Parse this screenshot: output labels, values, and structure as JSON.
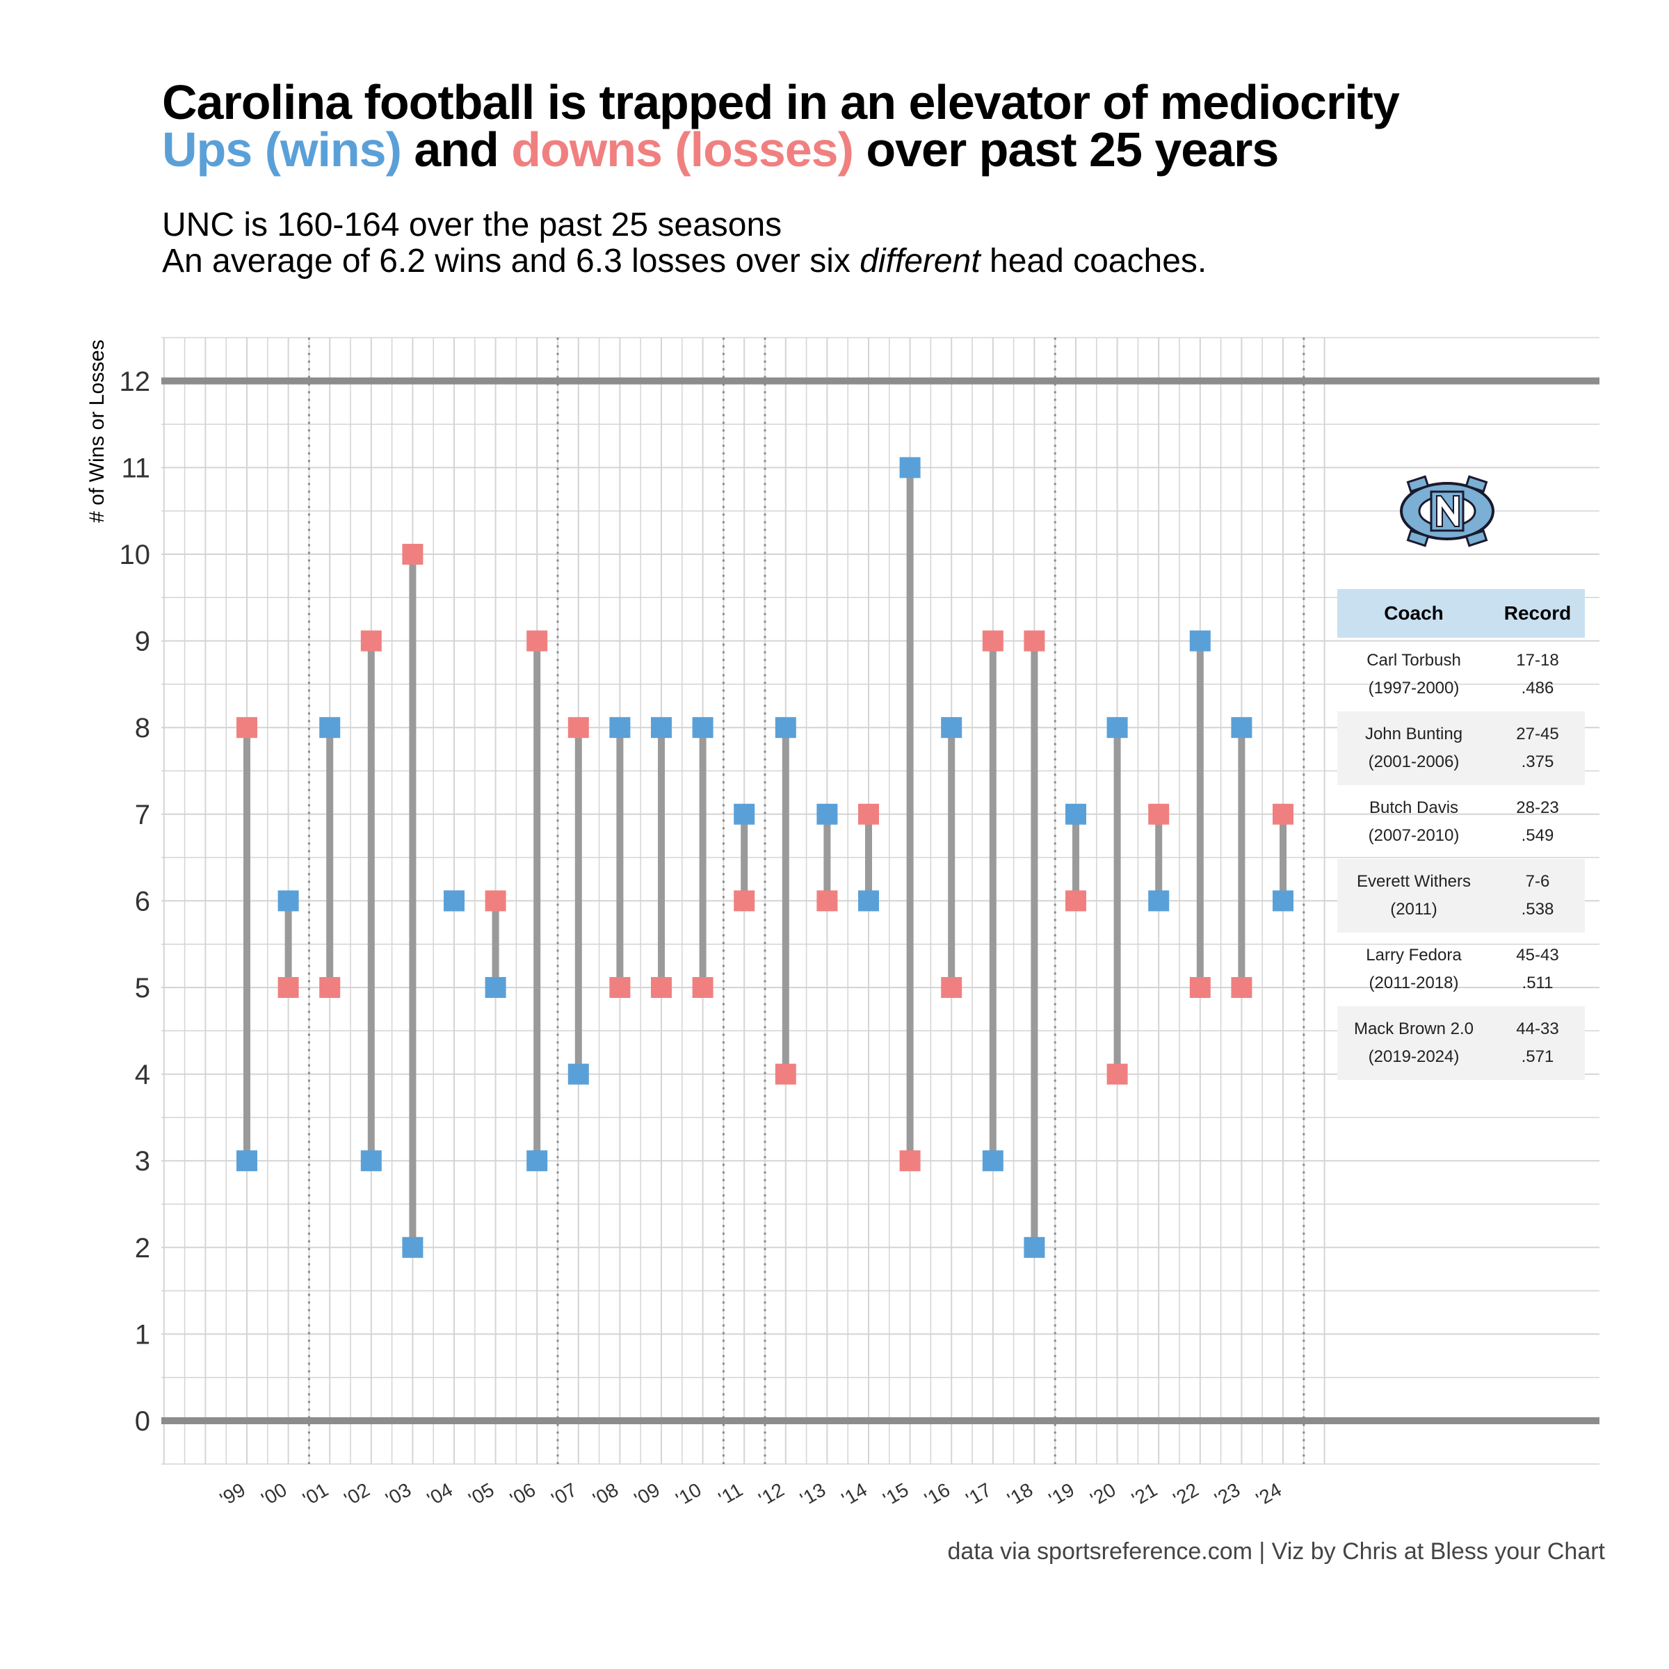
{
  "title": {
    "line1": "Carolina football is trapped in an elevator of mediocrity",
    "line2_wins": "Ups (wins)",
    "line2_and": " and ",
    "line2_losses": "downs (losses)",
    "line2_rest": " over past 25 years"
  },
  "subtitle": {
    "line1": "UNC is 160-164 over the past 25 seasons",
    "line2_a": "An average of 6.2 wins and 6.3 losses over six ",
    "line2_em": "different",
    "line2_b": " head coaches."
  },
  "caption": "data via sportsreference.com | Viz by Chris at Bless your Chart",
  "colors": {
    "wins": "#5aa0d8",
    "losses": "#f08080",
    "connector": "#9a9a9a",
    "reference_line": "#8c8c8c",
    "grid": "#d4d4d4"
  },
  "table": {
    "headers": [
      "Coach",
      "Record"
    ],
    "rows": [
      {
        "coach": "Carl Torbush",
        "years": "(1997-2000)",
        "record": "17-18",
        "pct": ".486"
      },
      {
        "coach": "John Bunting",
        "years": "(2001-2006)",
        "record": "27-45",
        "pct": ".375"
      },
      {
        "coach": "Butch Davis",
        "years": "(2007-2010)",
        "record": "28-23",
        "pct": ".549"
      },
      {
        "coach": "Everett Withers",
        "years": "(2011)",
        "record": "7-6",
        "pct": ".538"
      },
      {
        "coach": "Larry Fedora",
        "years": "(2011-2018)",
        "record": "45-43",
        "pct": ".511"
      },
      {
        "coach": "Mack Brown 2.0",
        "years": "(2019-2024)",
        "record": "44-33",
        "pct": ".571"
      }
    ]
  },
  "logo": {
    "icon": "unc-nc-logo-icon",
    "color": "#7bafd4"
  },
  "chart_data": {
    "type": "dumbbell",
    "ylabel": "# of Wins or Losses",
    "ylim": [
      0,
      12
    ],
    "yticks": [
      0,
      1,
      2,
      3,
      4,
      5,
      6,
      7,
      8,
      9,
      10,
      11,
      12
    ],
    "reference_lines_y": [
      0,
      12
    ],
    "x": [
      "'99",
      "'00",
      "'01",
      "'02",
      "'03",
      "'04",
      "'05",
      "'06",
      "'07",
      "'08",
      "'09",
      "'10",
      "'11",
      "'12",
      "'13",
      "'14",
      "'15",
      "'16",
      "'17",
      "'18",
      "'19",
      "'20",
      "'21",
      "'22",
      "'23",
      "'24"
    ],
    "coach_change_after": [
      "'00",
      "'06",
      "'10",
      "'11",
      "'18",
      "'24"
    ],
    "series": [
      {
        "name": "wins",
        "values": [
          3,
          6,
          8,
          3,
          2,
          6,
          5,
          3,
          4,
          8,
          8,
          8,
          7,
          8,
          7,
          6,
          11,
          8,
          3,
          2,
          7,
          8,
          6,
          9,
          8,
          6
        ]
      },
      {
        "name": "losses",
        "values": [
          8,
          5,
          5,
          9,
          10,
          6,
          6,
          9,
          8,
          5,
          5,
          5,
          6,
          4,
          6,
          7,
          3,
          5,
          9,
          9,
          6,
          4,
          7,
          5,
          5,
          7
        ]
      }
    ]
  }
}
